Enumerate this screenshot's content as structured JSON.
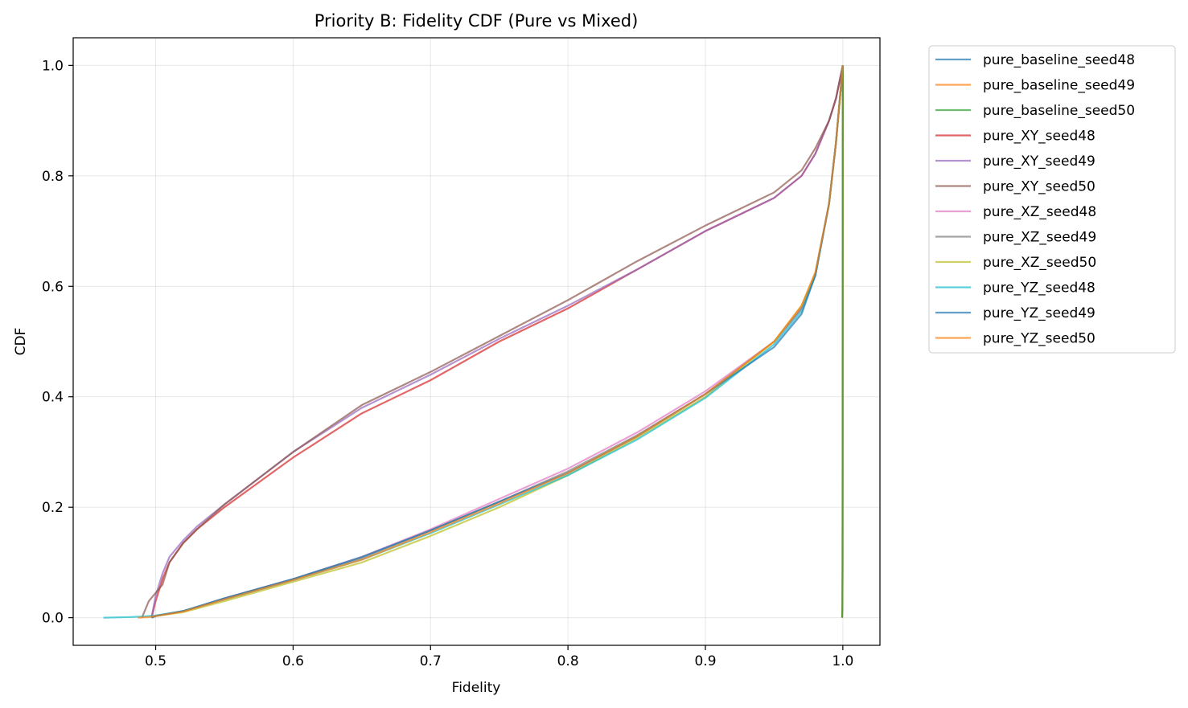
{
  "chart_data": {
    "type": "line",
    "title": "Priority B: Fidelity CDF (Pure vs Mixed)",
    "xlabel": "Fidelity",
    "ylabel": "CDF",
    "xlim": [
      0.44,
      1.027
    ],
    "ylim": [
      -0.05,
      1.05
    ],
    "xticks": [
      0.5,
      0.6,
      0.7,
      0.8,
      0.9,
      1.0
    ],
    "xtick_labels": [
      "0.5",
      "0.6",
      "0.7",
      "0.8",
      "0.9",
      "1.0"
    ],
    "yticks": [
      0.0,
      0.2,
      0.4,
      0.6,
      0.8,
      1.0
    ],
    "ytick_labels": [
      "0.0",
      "0.2",
      "0.4",
      "0.6",
      "0.8",
      "1.0"
    ],
    "grid": true,
    "legend_position": "outside-right-top",
    "series": [
      {
        "name": "pure_baseline_seed48",
        "color": "#1f77b4",
        "x": [
          0.9995,
          0.9997,
          0.9998,
          0.99985,
          0.9999,
          0.99995,
          1.0
        ],
        "y": [
          0.0,
          0.02,
          0.1,
          0.3,
          0.6,
          0.85,
          1.0
        ]
      },
      {
        "name": "pure_baseline_seed49",
        "color": "#ff7f0e",
        "x": [
          0.9995,
          0.9997,
          0.9998,
          0.99985,
          0.9999,
          0.99995,
          1.0
        ],
        "y": [
          0.0,
          0.02,
          0.1,
          0.3,
          0.6,
          0.85,
          1.0
        ]
      },
      {
        "name": "pure_baseline_seed50",
        "color": "#2ca02c",
        "x": [
          0.9995,
          0.9997,
          0.9998,
          0.99985,
          0.9999,
          0.99995,
          1.0
        ],
        "y": [
          0.0,
          0.02,
          0.1,
          0.3,
          0.6,
          0.85,
          1.0
        ]
      },
      {
        "name": "pure_XY_seed48",
        "color": "#d62728",
        "x": [
          0.497,
          0.5,
          0.505,
          0.51,
          0.52,
          0.53,
          0.55,
          0.6,
          0.65,
          0.7,
          0.75,
          0.8,
          0.85,
          0.9,
          0.95,
          0.97,
          0.98,
          0.99,
          0.995,
          1.0
        ],
        "y": [
          0.0,
          0.03,
          0.07,
          0.1,
          0.135,
          0.16,
          0.2,
          0.29,
          0.37,
          0.43,
          0.5,
          0.56,
          0.63,
          0.7,
          0.76,
          0.8,
          0.84,
          0.9,
          0.94,
          1.0
        ]
      },
      {
        "name": "pure_XY_seed49",
        "color": "#9467bd",
        "x": [
          0.497,
          0.5,
          0.505,
          0.51,
          0.52,
          0.53,
          0.55,
          0.6,
          0.65,
          0.7,
          0.75,
          0.8,
          0.85,
          0.9,
          0.95,
          0.97,
          0.98,
          0.99,
          0.995,
          1.0
        ],
        "y": [
          0.0,
          0.04,
          0.08,
          0.11,
          0.14,
          0.165,
          0.205,
          0.3,
          0.38,
          0.44,
          0.505,
          0.565,
          0.63,
          0.7,
          0.76,
          0.8,
          0.84,
          0.9,
          0.94,
          1.0
        ]
      },
      {
        "name": "pure_XY_seed50",
        "color": "#8c564b",
        "x": [
          0.49,
          0.495,
          0.5,
          0.505,
          0.51,
          0.52,
          0.53,
          0.55,
          0.6,
          0.65,
          0.7,
          0.75,
          0.8,
          0.85,
          0.9,
          0.95,
          0.97,
          0.98,
          0.99,
          0.995,
          1.0
        ],
        "y": [
          0.0,
          0.03,
          0.045,
          0.06,
          0.1,
          0.135,
          0.16,
          0.205,
          0.3,
          0.385,
          0.445,
          0.51,
          0.575,
          0.645,
          0.71,
          0.77,
          0.81,
          0.85,
          0.9,
          0.94,
          1.0
        ]
      },
      {
        "name": "pure_XZ_seed48",
        "color": "#e377c2",
        "x": [
          0.497,
          0.5,
          0.52,
          0.55,
          0.6,
          0.65,
          0.7,
          0.75,
          0.8,
          0.85,
          0.9,
          0.95,
          0.97,
          0.98,
          0.99,
          0.995,
          1.0
        ],
        "y": [
          0.0,
          0.003,
          0.012,
          0.035,
          0.07,
          0.11,
          0.16,
          0.215,
          0.27,
          0.335,
          0.41,
          0.5,
          0.56,
          0.62,
          0.75,
          0.86,
          1.0
        ]
      },
      {
        "name": "pure_XZ_seed49",
        "color": "#7f7f7f",
        "x": [
          0.497,
          0.5,
          0.52,
          0.55,
          0.6,
          0.65,
          0.7,
          0.75,
          0.8,
          0.85,
          0.9,
          0.95,
          0.97,
          0.98,
          0.99,
          0.995,
          1.0
        ],
        "y": [
          0.0,
          0.003,
          0.012,
          0.035,
          0.07,
          0.108,
          0.158,
          0.21,
          0.265,
          0.33,
          0.405,
          0.5,
          0.56,
          0.62,
          0.75,
          0.86,
          1.0
        ]
      },
      {
        "name": "pure_XZ_seed50",
        "color": "#bcbd22",
        "x": [
          0.497,
          0.5,
          0.52,
          0.55,
          0.6,
          0.65,
          0.7,
          0.75,
          0.8,
          0.85,
          0.9,
          0.95,
          0.97,
          0.98,
          0.99,
          0.995,
          1.0
        ],
        "y": [
          0.0,
          0.003,
          0.01,
          0.03,
          0.065,
          0.1,
          0.148,
          0.2,
          0.258,
          0.325,
          0.4,
          0.5,
          0.565,
          0.625,
          0.75,
          0.86,
          1.0
        ]
      },
      {
        "name": "pure_YZ_seed48",
        "color": "#17becf",
        "x": [
          0.462,
          0.48,
          0.49,
          0.5,
          0.52,
          0.55,
          0.6,
          0.65,
          0.7,
          0.75,
          0.8,
          0.85,
          0.9,
          0.95,
          0.97,
          0.98,
          0.99,
          0.995,
          1.0
        ],
        "y": [
          0.0,
          0.001,
          0.002,
          0.004,
          0.012,
          0.033,
          0.068,
          0.105,
          0.153,
          0.205,
          0.258,
          0.322,
          0.398,
          0.495,
          0.555,
          0.62,
          0.75,
          0.86,
          1.0
        ]
      },
      {
        "name": "pure_YZ_seed49",
        "color": "#1f77b4",
        "x": [
          0.497,
          0.5,
          0.52,
          0.55,
          0.6,
          0.65,
          0.7,
          0.75,
          0.8,
          0.85,
          0.9,
          0.95,
          0.97,
          0.98,
          0.99,
          0.995,
          1.0
        ],
        "y": [
          0.0,
          0.003,
          0.012,
          0.035,
          0.07,
          0.11,
          0.158,
          0.21,
          0.262,
          0.328,
          0.405,
          0.49,
          0.55,
          0.62,
          0.75,
          0.86,
          1.0
        ]
      },
      {
        "name": "pure_YZ_seed50",
        "color": "#ff7f0e",
        "x": [
          0.487,
          0.495,
          0.5,
          0.52,
          0.55,
          0.6,
          0.65,
          0.7,
          0.75,
          0.8,
          0.85,
          0.9,
          0.95,
          0.97,
          0.98,
          0.99,
          0.995,
          1.0
        ],
        "y": [
          0.0,
          0.001,
          0.003,
          0.011,
          0.033,
          0.068,
          0.105,
          0.155,
          0.207,
          0.262,
          0.328,
          0.405,
          0.5,
          0.565,
          0.625,
          0.75,
          0.86,
          1.0
        ]
      }
    ]
  }
}
